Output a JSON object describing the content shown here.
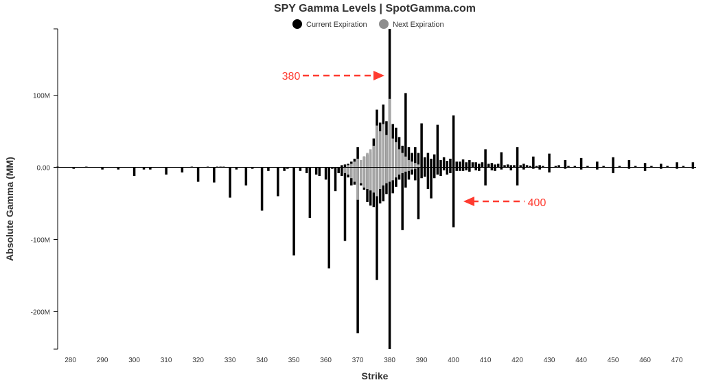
{
  "chart_data": {
    "type": "bar",
    "title": "SPY Gamma Levels | SpotGamma.com",
    "xlabel": "Strike",
    "ylabel": "Absolute Gamma (MM)",
    "xlim": [
      276,
      476
    ],
    "ylim": [
      -252,
      192
    ],
    "x_ticks": [
      280,
      290,
      300,
      310,
      320,
      330,
      340,
      350,
      360,
      370,
      380,
      390,
      400,
      410,
      420,
      430,
      440,
      450,
      460,
      470
    ],
    "y_ticks": [
      {
        "value": 100,
        "label": "100M"
      },
      {
        "value": 0,
        "label": "0.00"
      },
      {
        "value": -100,
        "label": "-100M"
      },
      {
        "value": -200,
        "label": "-200M"
      }
    ],
    "grid": false,
    "legend_position": "top-center",
    "series": [
      {
        "name": "Current Expiration",
        "color": "#000000",
        "points": [
          [
            276,
            1
          ],
          [
            281,
            -2
          ],
          [
            285,
            1
          ],
          [
            290,
            -3
          ],
          [
            295,
            -3
          ],
          [
            300,
            -12
          ],
          [
            303,
            -3
          ],
          [
            305,
            -3
          ],
          [
            310,
            -10
          ],
          [
            315,
            -7
          ],
          [
            318,
            1
          ],
          [
            320,
            -20
          ],
          [
            323,
            1
          ],
          [
            325,
            -21
          ],
          [
            326,
            1
          ],
          [
            327,
            1
          ],
          [
            328,
            1
          ],
          [
            330,
            -42
          ],
          [
            332,
            -3
          ],
          [
            335,
            -25
          ],
          [
            337,
            -2
          ],
          [
            340,
            -60
          ],
          [
            342,
            -5
          ],
          [
            345,
            -40
          ],
          [
            347,
            -5
          ],
          [
            348,
            -2
          ],
          [
            350,
            -122
          ],
          [
            352,
            -5
          ],
          [
            354,
            -8
          ],
          [
            355,
            -70
          ],
          [
            357,
            -10
          ],
          [
            358,
            -12
          ],
          [
            360,
            -17
          ],
          [
            361,
            -140
          ],
          [
            362,
            -2
          ],
          [
            363,
            -33
          ],
          [
            364,
            -8
          ],
          [
            365,
            -12
          ],
          [
            366,
            -102
          ],
          [
            367,
            -14
          ],
          [
            368,
            -25
          ],
          [
            369,
            -24
          ],
          [
            370,
            -230
          ],
          [
            371,
            -25
          ],
          [
            372,
            -31
          ],
          [
            373,
            -48
          ],
          [
            374,
            -53
          ],
          [
            375,
            -55
          ],
          [
            376,
            -156
          ],
          [
            377,
            -50
          ],
          [
            378,
            -47
          ],
          [
            379,
            -37
          ],
          [
            380,
            -252
          ],
          [
            381,
            -36
          ],
          [
            382,
            -27
          ],
          [
            383,
            -17
          ],
          [
            384,
            -87
          ],
          [
            385,
            -28
          ],
          [
            386,
            -17
          ],
          [
            387,
            -10
          ],
          [
            388,
            -18
          ],
          [
            389,
            -72
          ],
          [
            390,
            -15
          ],
          [
            391,
            -13
          ],
          [
            392,
            -30
          ],
          [
            393,
            -43
          ],
          [
            394,
            -15
          ],
          [
            395,
            -10
          ],
          [
            396,
            -12
          ],
          [
            397,
            -4
          ],
          [
            398,
            -10
          ],
          [
            399,
            -8
          ],
          [
            400,
            -83
          ],
          [
            401,
            -5
          ],
          [
            402,
            -5
          ],
          [
            403,
            -5
          ],
          [
            404,
            -4
          ],
          [
            405,
            -6
          ],
          [
            407,
            -4
          ],
          [
            408,
            -5
          ],
          [
            410,
            -25
          ],
          [
            412,
            -4
          ],
          [
            413,
            -5
          ],
          [
            415,
            -3
          ],
          [
            418,
            -4
          ],
          [
            420,
            -25
          ],
          [
            422,
            -3
          ],
          [
            425,
            -2
          ],
          [
            427,
            -3
          ],
          [
            430,
            -7
          ],
          [
            435,
            -2
          ],
          [
            440,
            -3
          ],
          [
            445,
            -3
          ],
          [
            450,
            -8
          ],
          [
            455,
            -2
          ],
          [
            460,
            -5
          ],
          [
            465,
            -2
          ],
          [
            470,
            -2
          ],
          [
            475,
            -2
          ],
          [
            365,
            3
          ],
          [
            366,
            4
          ],
          [
            367,
            5
          ],
          [
            368,
            8
          ],
          [
            369,
            12
          ],
          [
            370,
            28
          ],
          [
            371,
            10
          ],
          [
            372,
            15
          ],
          [
            373,
            18
          ],
          [
            374,
            21
          ],
          [
            375,
            40
          ],
          [
            376,
            80
          ],
          [
            377,
            62
          ],
          [
            378,
            87
          ],
          [
            379,
            64
          ],
          [
            380,
            192
          ],
          [
            381,
            60
          ],
          [
            382,
            55
          ],
          [
            383,
            42
          ],
          [
            384,
            30
          ],
          [
            385,
            103
          ],
          [
            386,
            28
          ],
          [
            387,
            20
          ],
          [
            388,
            28
          ],
          [
            389,
            20
          ],
          [
            390,
            61
          ],
          [
            391,
            14
          ],
          [
            392,
            20
          ],
          [
            393,
            12
          ],
          [
            394,
            18
          ],
          [
            395,
            59
          ],
          [
            396,
            10
          ],
          [
            397,
            14
          ],
          [
            398,
            9
          ],
          [
            399,
            12
          ],
          [
            400,
            72
          ],
          [
            401,
            8
          ],
          [
            402,
            8
          ],
          [
            403,
            11
          ],
          [
            404,
            7
          ],
          [
            405,
            10
          ],
          [
            406,
            7
          ],
          [
            407,
            7
          ],
          [
            408,
            5
          ],
          [
            409,
            7
          ],
          [
            410,
            25
          ],
          [
            411,
            5
          ],
          [
            412,
            6
          ],
          [
            413,
            4
          ],
          [
            414,
            5
          ],
          [
            415,
            21
          ],
          [
            416,
            3
          ],
          [
            417,
            4
          ],
          [
            418,
            3
          ],
          [
            419,
            3
          ],
          [
            420,
            28
          ],
          [
            421,
            3
          ],
          [
            422,
            5
          ],
          [
            423,
            3
          ],
          [
            424,
            2
          ],
          [
            425,
            15
          ],
          [
            426,
            2
          ],
          [
            427,
            3
          ],
          [
            428,
            2
          ],
          [
            430,
            19
          ],
          [
            432,
            2
          ],
          [
            433,
            3
          ],
          [
            435,
            10
          ],
          [
            436,
            2
          ],
          [
            438,
            2
          ],
          [
            440,
            13
          ],
          [
            442,
            2
          ],
          [
            445,
            8
          ],
          [
            447,
            2
          ],
          [
            450,
            14
          ],
          [
            452,
            2
          ],
          [
            455,
            10
          ],
          [
            457,
            2
          ],
          [
            460,
            6
          ],
          [
            462,
            2
          ],
          [
            465,
            5
          ],
          [
            467,
            2
          ],
          [
            470,
            7
          ],
          [
            472,
            2
          ],
          [
            475,
            7
          ]
        ]
      },
      {
        "name": "Next Expiration",
        "color": "#a6a6a6",
        "points": [
          [
            366,
            -8
          ],
          [
            367,
            -10
          ],
          [
            368,
            -15
          ],
          [
            369,
            -20
          ],
          [
            370,
            -45
          ],
          [
            371,
            -22
          ],
          [
            372,
            -28
          ],
          [
            373,
            -30
          ],
          [
            374,
            -32
          ],
          [
            375,
            -35
          ],
          [
            376,
            -40
          ],
          [
            377,
            -30
          ],
          [
            378,
            -25
          ],
          [
            379,
            -22
          ],
          [
            380,
            -20
          ],
          [
            381,
            -18
          ],
          [
            382,
            -14
          ],
          [
            383,
            -10
          ],
          [
            384,
            -8
          ],
          [
            385,
            -6
          ],
          [
            386,
            -5
          ],
          [
            387,
            -3
          ],
          [
            388,
            -2
          ],
          [
            367,
            3
          ],
          [
            368,
            5
          ],
          [
            369,
            8
          ],
          [
            370,
            12
          ],
          [
            371,
            10
          ],
          [
            372,
            15
          ],
          [
            373,
            20
          ],
          [
            374,
            25
          ],
          [
            375,
            30
          ],
          [
            376,
            58
          ],
          [
            377,
            50
          ],
          [
            378,
            60
          ],
          [
            379,
            45
          ],
          [
            380,
            95
          ],
          [
            381,
            40
          ],
          [
            382,
            35
          ],
          [
            383,
            25
          ],
          [
            384,
            20
          ],
          [
            385,
            15
          ],
          [
            386,
            10
          ],
          [
            387,
            8
          ],
          [
            388,
            6
          ],
          [
            389,
            4
          ]
        ]
      }
    ],
    "annotations": [
      {
        "text": "380",
        "color": "#ff3b30",
        "arrow": "right"
      },
      {
        "text": "400",
        "color": "#ff3b30",
        "arrow": "left"
      }
    ]
  }
}
